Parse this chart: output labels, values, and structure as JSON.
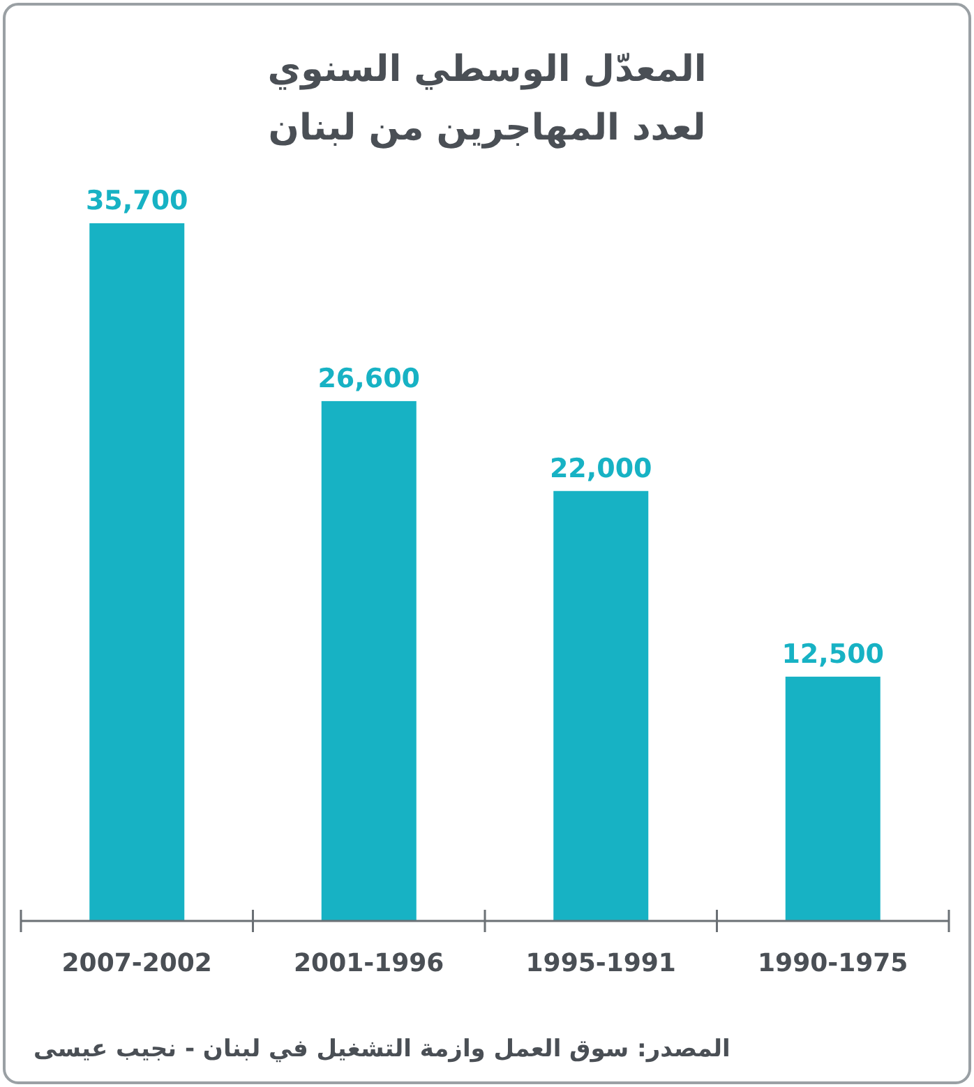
{
  "chart_data": {
    "type": "bar",
    "title": "المعدّل الوسطي السنوي\nلعدد المهاجرين من لبنان",
    "categories": [
      "2007-2002",
      "2001-1996",
      "1995-1991",
      "1990-1975"
    ],
    "values": [
      35700,
      26600,
      22000,
      12500
    ],
    "value_labels": [
      "35,700",
      "26,600",
      "22,000",
      "12,500"
    ],
    "color": "#17b2c4",
    "annotations": [
      "المصدر: سوق العمل وازمة التشغيل في لبنان - نجيب عيسى"
    ]
  }
}
